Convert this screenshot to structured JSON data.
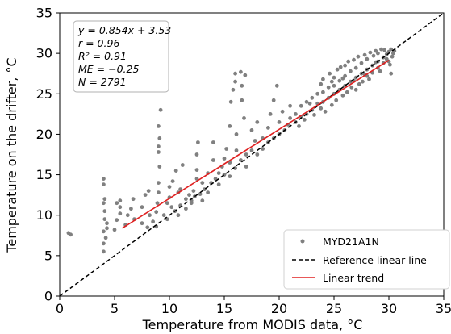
{
  "chart_data": {
    "type": "scatter",
    "xlabel": "Temperature from MODIS data, °C",
    "ylabel": "Temperature on the drifter, °C",
    "xlim": [
      0,
      35
    ],
    "ylim": [
      0,
      35
    ],
    "xticks": [
      0,
      5,
      10,
      15,
      20,
      25,
      30,
      35
    ],
    "yticks": [
      0,
      5,
      10,
      15,
      20,
      25,
      30,
      35
    ],
    "grid": false,
    "legend_position": "bottom-right",
    "colors": {
      "points": "#808080",
      "reference": "#000000",
      "trend": "#e02020"
    },
    "stats": [
      "y = 0.854x + 3.53",
      "r = 0.96",
      "R² = 0.91",
      "ME = −0.25",
      "N = 2791"
    ],
    "series": [
      {
        "name": "MYD21A1N",
        "kind": "scatter",
        "points": [
          [
            0.8,
            7.8
          ],
          [
            1.0,
            7.6
          ],
          [
            4.0,
            5.5
          ],
          [
            4.0,
            6.5
          ],
          [
            4.0,
            8.0
          ],
          [
            4.1,
            9.5
          ],
          [
            4.1,
            10.5
          ],
          [
            4.0,
            11.5
          ],
          [
            4.1,
            12.0
          ],
          [
            4.0,
            13.8
          ],
          [
            4.0,
            14.5
          ],
          [
            4.3,
            9.0
          ],
          [
            4.3,
            8.4
          ],
          [
            4.2,
            7.2
          ],
          [
            5.0,
            8.2
          ],
          [
            5.2,
            9.4
          ],
          [
            5.5,
            10.2
          ],
          [
            5.5,
            11.0
          ],
          [
            5.5,
            11.8
          ],
          [
            5.2,
            11.5
          ],
          [
            6.0,
            8.8
          ],
          [
            6.2,
            10.0
          ],
          [
            6.5,
            10.8
          ],
          [
            6.7,
            12.0
          ],
          [
            6.8,
            9.5
          ],
          [
            7.5,
            9.0
          ],
          [
            7.5,
            11.0
          ],
          [
            7.8,
            12.5
          ],
          [
            8.0,
            8.5
          ],
          [
            8.2,
            10.0
          ],
          [
            8.1,
            13.0
          ],
          [
            8.5,
            9.2
          ],
          [
            8.8,
            10.4
          ],
          [
            8.9,
            11.5
          ],
          [
            9.0,
            12.8
          ],
          [
            9.0,
            14.0
          ],
          [
            9.1,
            16.0
          ],
          [
            9.0,
            17.8
          ],
          [
            9.1,
            19.5
          ],
          [
            9.0,
            21.0
          ],
          [
            9.2,
            23.0
          ],
          [
            9.0,
            18.5
          ],
          [
            9.5,
            10.0
          ],
          [
            9.8,
            11.5
          ],
          [
            10.0,
            12.2
          ],
          [
            10.0,
            13.5
          ],
          [
            10.2,
            11.0
          ],
          [
            10.5,
            10.5
          ],
          [
            10.3,
            14.2
          ],
          [
            10.6,
            15.5
          ],
          [
            10.8,
            12.8
          ],
          [
            11.0,
            11.2
          ],
          [
            11.0,
            13.2
          ],
          [
            11.2,
            16.2
          ],
          [
            11.5,
            12.0
          ],
          [
            11.8,
            12.5
          ],
          [
            12.0,
            11.8
          ],
          [
            12.2,
            13.0
          ],
          [
            12.3,
            12.3
          ],
          [
            12.5,
            14.5
          ],
          [
            12.5,
            15.6
          ],
          [
            12.5,
            17.5
          ],
          [
            12.6,
            19.0
          ],
          [
            12.8,
            12.6
          ],
          [
            13.0,
            14.0
          ],
          [
            13.2,
            13.2
          ],
          [
            13.5,
            15.2
          ],
          [
            13.8,
            14.0
          ],
          [
            14.0,
            16.8
          ],
          [
            14.0,
            19.0
          ],
          [
            14.2,
            14.5
          ],
          [
            14.5,
            15.2
          ],
          [
            14.8,
            16.0
          ],
          [
            15.0,
            17.0
          ],
          [
            15.2,
            18.2
          ],
          [
            15.0,
            15.0
          ],
          [
            15.5,
            16.5
          ],
          [
            15.5,
            21.0
          ],
          [
            15.6,
            24.0
          ],
          [
            15.8,
            25.5
          ],
          [
            16.0,
            27.5
          ],
          [
            16.0,
            26.5
          ],
          [
            16.1,
            20.0
          ],
          [
            16.1,
            18.0
          ],
          [
            16.5,
            27.7
          ],
          [
            16.6,
            26.0
          ],
          [
            16.6,
            24.2
          ],
          [
            16.8,
            22.0
          ],
          [
            16.9,
            27.3
          ],
          [
            16.0,
            15.8
          ],
          [
            16.5,
            16.8
          ],
          [
            17.0,
            17.5
          ],
          [
            17.0,
            16.0
          ],
          [
            17.5,
            18.0
          ],
          [
            17.5,
            20.5
          ],
          [
            17.8,
            19.2
          ],
          [
            18.0,
            17.5
          ],
          [
            18.0,
            21.5
          ],
          [
            18.5,
            18.2
          ],
          [
            18.5,
            19.5
          ],
          [
            19.0,
            19.0
          ],
          [
            19.0,
            20.8
          ],
          [
            19.2,
            22.5
          ],
          [
            19.5,
            19.5
          ],
          [
            19.5,
            24.2
          ],
          [
            19.8,
            26.0
          ],
          [
            20.0,
            20.0
          ],
          [
            20.0,
            21.5
          ],
          [
            20.3,
            22.8
          ],
          [
            20.5,
            20.5
          ],
          [
            20.8,
            21.2
          ],
          [
            21.0,
            22.0
          ],
          [
            21.0,
            23.5
          ],
          [
            21.5,
            21.5
          ],
          [
            21.5,
            22.5
          ],
          [
            22.0,
            22.2
          ],
          [
            22.0,
            23.5
          ],
          [
            22.3,
            21.8
          ],
          [
            22.5,
            24.0
          ],
          [
            22.5,
            22.5
          ],
          [
            23.0,
            23.0
          ],
          [
            23.0,
            24.5
          ],
          [
            23.2,
            22.4
          ],
          [
            23.5,
            23.8
          ],
          [
            23.5,
            25.0
          ],
          [
            23.8,
            26.2
          ],
          [
            24.0,
            24.0
          ],
          [
            24.0,
            25.2
          ],
          [
            24.0,
            26.8
          ],
          [
            24.2,
            22.8
          ],
          [
            24.5,
            24.5
          ],
          [
            24.5,
            25.8
          ],
          [
            24.6,
            27.5
          ],
          [
            24.8,
            26.5
          ],
          [
            25.0,
            25.0
          ],
          [
            25.0,
            26.0
          ],
          [
            25.0,
            27.0
          ],
          [
            25.2,
            24.2
          ],
          [
            25.3,
            28.0
          ],
          [
            25.5,
            25.5
          ],
          [
            25.5,
            26.6
          ],
          [
            25.6,
            28.3
          ],
          [
            25.8,
            24.8
          ],
          [
            26.0,
            26.0
          ],
          [
            26.0,
            27.2
          ],
          [
            26.0,
            28.5
          ],
          [
            26.2,
            25.2
          ],
          [
            26.3,
            29.0
          ],
          [
            26.5,
            26.5
          ],
          [
            26.5,
            27.8
          ],
          [
            26.6,
            25.8
          ],
          [
            26.8,
            29.2
          ],
          [
            27.0,
            27.0
          ],
          [
            27.0,
            28.2
          ],
          [
            27.0,
            25.5
          ],
          [
            27.2,
            29.6
          ],
          [
            27.3,
            26.2
          ],
          [
            27.5,
            27.5
          ],
          [
            27.5,
            28.8
          ],
          [
            27.6,
            26.5
          ],
          [
            27.8,
            29.8
          ],
          [
            28.0,
            28.0
          ],
          [
            28.0,
            27.2
          ],
          [
            28.0,
            29.3
          ],
          [
            28.2,
            26.8
          ],
          [
            28.3,
            30.1
          ],
          [
            28.5,
            28.5
          ],
          [
            28.5,
            27.6
          ],
          [
            28.6,
            29.7
          ],
          [
            28.8,
            30.3
          ],
          [
            29.0,
            29.0
          ],
          [
            29.0,
            28.2
          ],
          [
            29.0,
            30.0
          ],
          [
            29.2,
            27.8
          ],
          [
            29.3,
            30.5
          ],
          [
            29.5,
            29.5
          ],
          [
            29.5,
            28.8
          ],
          [
            29.6,
            30.4
          ],
          [
            29.8,
            29.9
          ],
          [
            30.0,
            29.0
          ],
          [
            30.0,
            30.2
          ],
          [
            30.1,
            28.6
          ],
          [
            30.2,
            30.5
          ],
          [
            30.3,
            29.6
          ],
          [
            30.4,
            30.0
          ],
          [
            30.2,
            27.5
          ],
          [
            30.5,
            30.3
          ],
          [
            21.8,
            21.0
          ],
          [
            22.8,
            23.8
          ],
          [
            23.8,
            23.2
          ],
          [
            24.8,
            23.6
          ],
          [
            25.8,
            26.9
          ],
          [
            26.8,
            26.6
          ],
          [
            27.8,
            27.4
          ],
          [
            28.8,
            28.9
          ],
          [
            29.8,
            29.3
          ],
          [
            13.0,
            11.8
          ],
          [
            12.0,
            11.5
          ],
          [
            11.5,
            10.8
          ],
          [
            10.8,
            10.0
          ],
          [
            9.8,
            9.5
          ],
          [
            8.8,
            8.6
          ],
          [
            13.5,
            12.8
          ],
          [
            14.5,
            13.8
          ],
          [
            15.5,
            14.8
          ]
        ]
      },
      {
        "name": "Reference linear line",
        "kind": "line",
        "slope": 1,
        "intercept": 0,
        "x": [
          0,
          35
        ]
      },
      {
        "name": "Linear trend",
        "kind": "line",
        "slope": 0.854,
        "intercept": 3.53,
        "x": [
          5.7,
          30
        ]
      }
    ]
  }
}
